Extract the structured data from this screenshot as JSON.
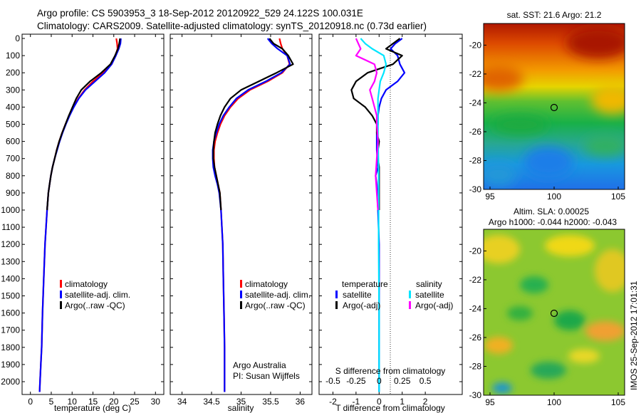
{
  "header": {
    "line1": "Argo profile: CS 5903953_3 18-Sep-2012 20120922_529 24.122S 100.031E",
    "line2": "Climatology: CARS2009. Satellite-adjusted climatology: synTS_20120918.nc (0.73d earlier)"
  },
  "side_label": "IMOS 25-Sep-2012 17:01:31",
  "colors": {
    "climatology": "#ff0000",
    "satellite": "#0000ff",
    "argo": "#000000",
    "sat_salinity": "#00e5ff",
    "argo_salinity": "#ff00ff"
  },
  "depth_axis": {
    "ticks": [
      "0",
      "100",
      "200",
      "300",
      "400",
      "500",
      "600",
      "700",
      "800",
      "900",
      "1000",
      "1100",
      "1200",
      "1300",
      "1400",
      "1500",
      "1600",
      "1700",
      "1800",
      "1900",
      "2000"
    ]
  },
  "chart_data": [
    {
      "type": "line",
      "xlabel": "temperature (deg C)",
      "xlim": [
        -2,
        32
      ],
      "ylim": [
        0,
        2080
      ],
      "x_ticks": [
        "0",
        "5",
        "10",
        "15",
        "20",
        "25",
        "30"
      ],
      "legend": [
        "climatology",
        "satellite-adj. clim.",
        "Argo(..raw -QC)"
      ],
      "series": [
        {
          "name": "climatology",
          "color": "#ff0000",
          "x": [
            20.6,
            20.8,
            20.9,
            20.4,
            19.5,
            17.5,
            15.0,
            13.0,
            11.5,
            10.3,
            9.3,
            8.4,
            7.6,
            6.9,
            6.3,
            5.8,
            5.3,
            4.9,
            4.6,
            4.3,
            4.0,
            3.5,
            3.2,
            2.9,
            2.7,
            2.5,
            2.3,
            2.2
          ],
          "y": [
            0,
            30,
            60,
            100,
            150,
            200,
            250,
            300,
            350,
            400,
            450,
            500,
            550,
            600,
            650,
            700,
            750,
            800,
            850,
            900,
            1000,
            1200,
            1400,
            1600,
            1800,
            1900,
            2000,
            2060
          ]
        },
        {
          "name": "satellite-adj. clim.",
          "color": "#0000ff",
          "x": [
            21.7,
            21.6,
            21.2,
            20.5,
            19.5,
            17.8,
            15.5,
            13.2,
            11.6,
            10.4,
            9.4,
            8.5,
            7.7,
            7.0,
            6.4,
            5.8,
            5.3,
            4.9,
            4.6,
            4.3,
            4.0,
            3.5,
            3.2,
            2.9,
            2.7,
            2.5,
            2.3,
            2.2
          ],
          "y": [
            0,
            30,
            60,
            100,
            150,
            200,
            250,
            300,
            350,
            400,
            450,
            500,
            550,
            600,
            650,
            700,
            750,
            800,
            850,
            900,
            1000,
            1200,
            1400,
            1600,
            1800,
            1900,
            2000,
            2060
          ]
        },
        {
          "name": "Argo(..raw -QC)",
          "color": "#000000",
          "x": [
            21.5,
            21.3,
            21.0,
            20.3,
            19.2,
            17.0,
            14.3,
            12.2,
            11.0,
            10.1,
            9.2,
            8.4,
            7.6,
            6.9,
            6.3,
            5.8,
            5.3,
            4.9,
            4.6,
            4.3,
            4.0
          ],
          "y": [
            0,
            30,
            60,
            100,
            150,
            200,
            250,
            300,
            350,
            400,
            450,
            500,
            550,
            600,
            650,
            700,
            750,
            800,
            850,
            900,
            1000
          ]
        }
      ]
    },
    {
      "type": "line",
      "xlabel": "salinity",
      "xlim": [
        33.8,
        36.2
      ],
      "ylim": [
        0,
        2080
      ],
      "x_ticks": [
        "34",
        "34.5",
        "35",
        "35.5",
        "36"
      ],
      "legend": [
        "climatology",
        "satellite-adj. clim.",
        "Argo(..raw -QC)"
      ],
      "annotation": [
        "Argo Australia",
        "PI: Susan Wijffels"
      ],
      "series": [
        {
          "name": "climatology",
          "color": "#ff0000",
          "x": [
            35.65,
            35.67,
            35.7,
            35.78,
            35.82,
            35.7,
            35.45,
            35.15,
            34.95,
            34.82,
            34.72,
            34.65,
            34.6,
            34.56,
            34.54,
            34.54,
            34.55,
            34.58,
            34.61,
            34.64,
            34.66,
            34.69,
            34.7,
            34.71,
            34.72,
            34.72,
            34.72
          ],
          "y": [
            0,
            30,
            60,
            100,
            150,
            200,
            250,
            300,
            350,
            400,
            450,
            500,
            550,
            600,
            650,
            700,
            750,
            800,
            850,
            900,
            1000,
            1200,
            1400,
            1600,
            1800,
            2000,
            2060
          ]
        },
        {
          "name": "satellite-adj. clim.",
          "color": "#0000ff",
          "x": [
            35.45,
            35.52,
            35.62,
            35.78,
            35.83,
            35.68,
            35.42,
            35.12,
            34.92,
            34.8,
            34.7,
            34.63,
            34.58,
            34.54,
            34.52,
            34.52,
            34.53,
            34.56,
            34.6,
            34.63,
            34.66,
            34.69,
            34.7,
            34.71,
            34.72,
            34.72,
            34.72
          ],
          "y": [
            0,
            30,
            60,
            100,
            150,
            200,
            250,
            300,
            350,
            400,
            450,
            500,
            550,
            600,
            650,
            700,
            750,
            800,
            850,
            900,
            1000,
            1200,
            1400,
            1600,
            1800,
            2000,
            2060
          ]
        },
        {
          "name": "Argo(..raw -QC)",
          "color": "#000000",
          "x": [
            35.48,
            35.55,
            35.7,
            35.8,
            35.88,
            35.6,
            35.3,
            35.0,
            34.82,
            34.72,
            34.65,
            34.6,
            34.56,
            34.54,
            34.53,
            34.53,
            34.55,
            34.58,
            34.61,
            34.64,
            34.66
          ],
          "y": [
            0,
            30,
            60,
            100,
            150,
            200,
            250,
            300,
            350,
            400,
            450,
            500,
            550,
            600,
            650,
            700,
            750,
            800,
            850,
            900,
            1000
          ]
        }
      ]
    },
    {
      "type": "line",
      "xlabel": "T difference from climatology",
      "xlabel_top": "S difference from climatology",
      "xlim": [
        -2.6,
        3.6
      ],
      "ylim": [
        0,
        2080
      ],
      "x_ticks": [
        "-2",
        "-1",
        "0",
        "1",
        "2"
      ],
      "x_ticks_top": [
        "-0.5",
        "-0.25",
        "0",
        "0.25",
        "0.5"
      ],
      "legend_headers": [
        "temperature",
        "salinity"
      ],
      "legend": [
        "satellite",
        "Argo(-adj)",
        "satellite",
        "Argo(-adj)"
      ],
      "series": [
        {
          "name": "T satellite",
          "color": "#0000ff",
          "x": [
            1.0,
            0.7,
            0.5,
            0.8,
            0.9,
            1.1,
            0.8,
            0.3,
            0.1,
            0.0,
            -0.05,
            -0.05,
            -0.1,
            -0.1,
            -0.1,
            -0.08,
            -0.05,
            -0.15,
            -0.1,
            -0.08,
            -0.05,
            0.0,
            0.0,
            0.0,
            0.0
          ],
          "y": [
            0,
            30,
            60,
            100,
            150,
            200,
            250,
            300,
            350,
            400,
            450,
            500,
            550,
            600,
            650,
            700,
            750,
            800,
            850,
            900,
            1000,
            1200,
            1400,
            1600,
            2060
          ]
        },
        {
          "name": "T Argo(-adj)",
          "color": "#000000",
          "x": [
            0.9,
            0.6,
            0.3,
            1.0,
            0.6,
            -0.5,
            -1.0,
            -1.2,
            -1.1,
            -0.6,
            -0.3,
            -0.1,
            -0.1,
            0.0,
            -0.05,
            -0.05,
            0.0,
            0.0,
            0.0,
            0.0
          ],
          "y": [
            0,
            30,
            60,
            100,
            150,
            200,
            250,
            300,
            350,
            400,
            450,
            500,
            550,
            600,
            650,
            700,
            750,
            800,
            850,
            1000
          ]
        },
        {
          "name": "S satellite",
          "color": "#00e5ff",
          "x": [
            -0.8,
            -0.6,
            -0.3,
            0.2,
            0.3,
            0.2,
            0.05,
            0.0,
            -0.05,
            -0.05,
            -0.05,
            -0.05,
            -0.05,
            -0.03,
            -0.02,
            -0.02,
            -0.02,
            -0.02,
            0.0,
            0.0
          ],
          "y": [
            0,
            30,
            60,
            100,
            150,
            200,
            250,
            300,
            350,
            400,
            450,
            500,
            600,
            700,
            800,
            900,
            1000,
            1200,
            1600,
            2060
          ]
        },
        {
          "name": "S Argo(-adj)",
          "color": "#ff00ff",
          "x": [
            -1.0,
            -0.9,
            -0.8,
            -1.0,
            -0.2,
            -0.1,
            -0.2,
            -0.4,
            -0.3,
            -0.2,
            -0.1,
            -0.1,
            -0.05,
            -0.1,
            -0.15,
            -0.1,
            -0.05
          ],
          "y": [
            0,
            30,
            60,
            100,
            150,
            200,
            250,
            300,
            350,
            400,
            450,
            500,
            600,
            700,
            800,
            900,
            1000
          ]
        }
      ]
    },
    {
      "type": "heatmap",
      "title": "sat. SST: 21.6 Argo: 21.2",
      "xlim": [
        94.5,
        105.5
      ],
      "ylim": [
        -30,
        -18.5
      ],
      "x_ticks": [
        "95",
        "100",
        "105"
      ],
      "y_ticks": [
        "-20",
        "-22",
        "-24",
        "-26",
        "-28",
        "-30"
      ],
      "marker": {
        "lon": 100.031,
        "lat": -24.122
      }
    },
    {
      "type": "heatmap",
      "title": "Altim. SLA: 0.00025",
      "subtitle": "Argo h1000: -0.044 h2000: -0.043",
      "xlim": [
        94.5,
        105.5
      ],
      "ylim": [
        -30,
        -18.5
      ],
      "x_ticks": [
        "95",
        "100",
        "105"
      ],
      "y_ticks": [
        "-20",
        "-22",
        "-24",
        "-26",
        "-28",
        "-30"
      ],
      "marker": {
        "lon": 100.031,
        "lat": -24.122
      }
    }
  ]
}
